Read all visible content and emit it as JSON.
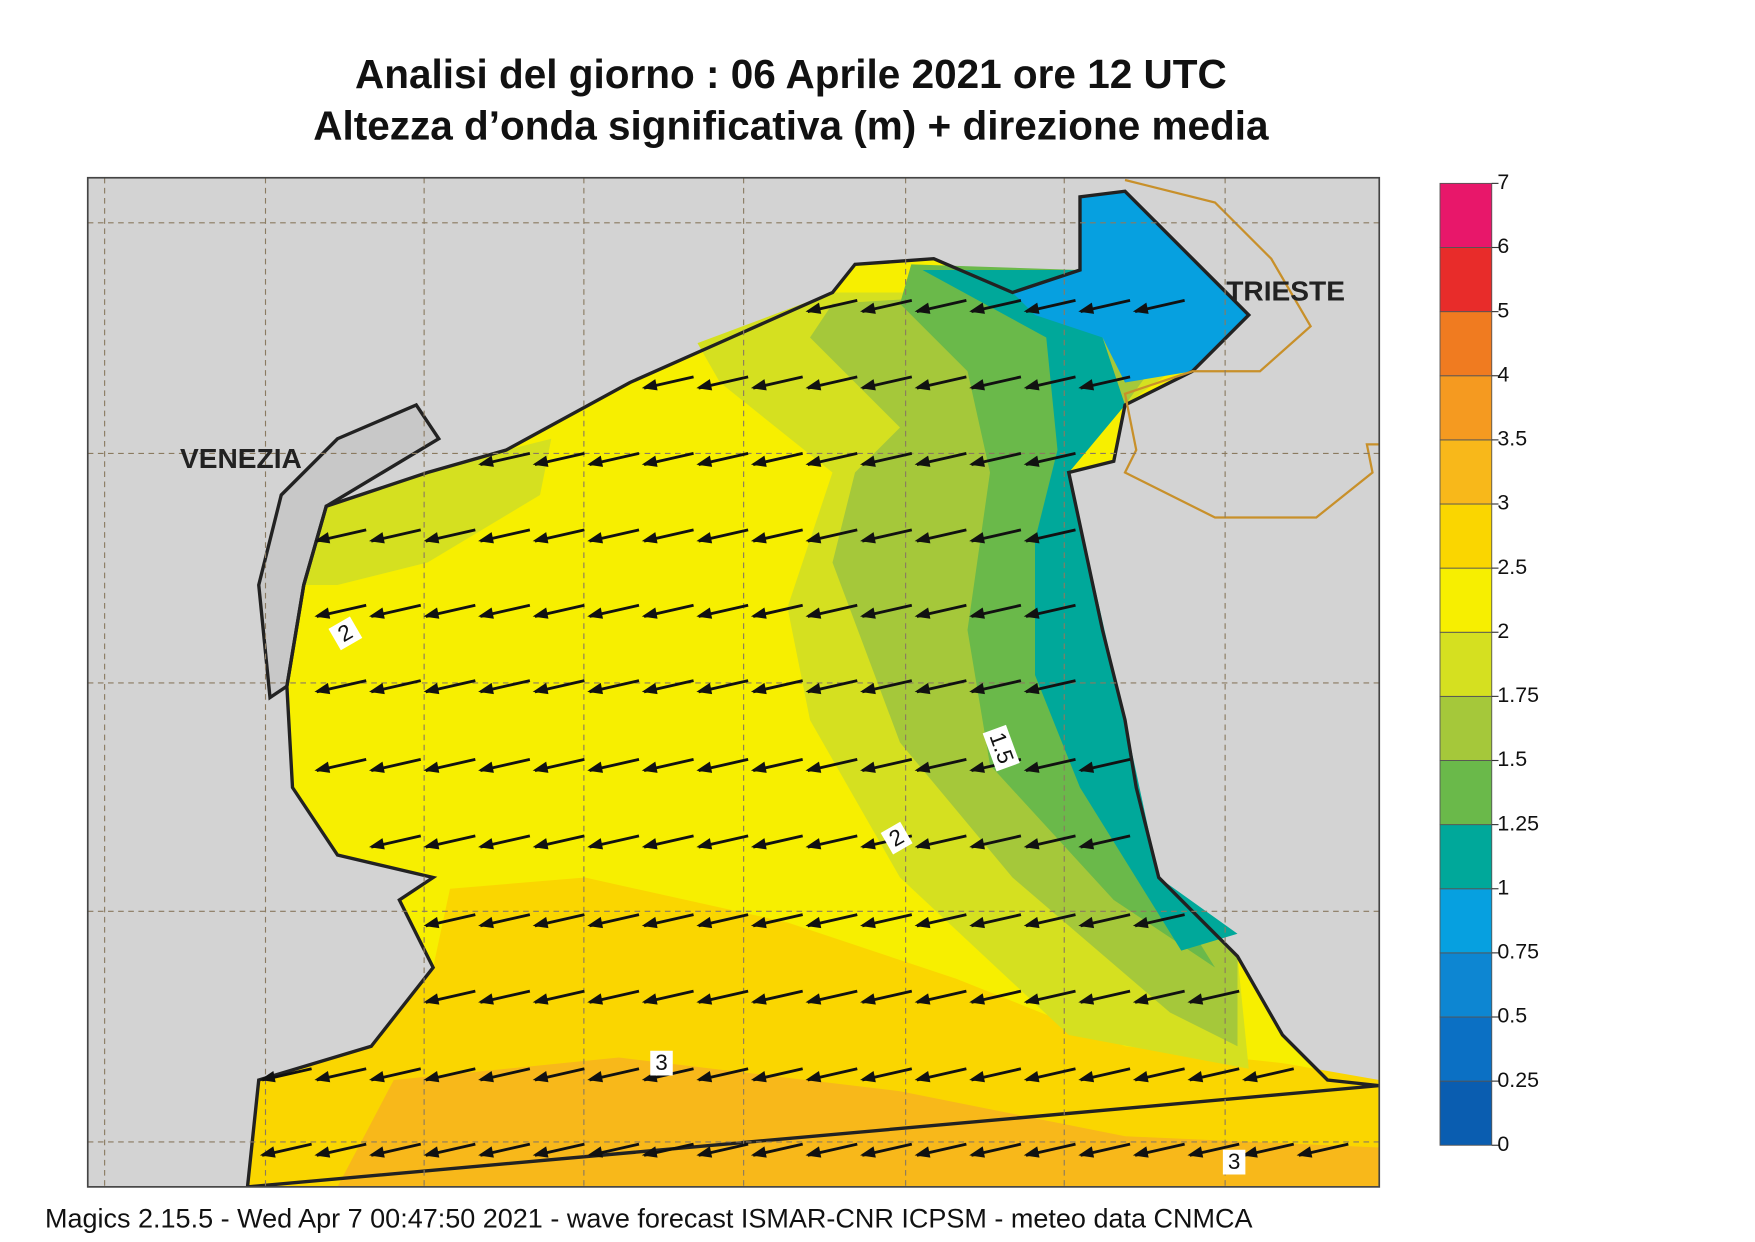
{
  "header": {
    "title_line1": "Analisi del giorno :  06   Aprile  2021   ore 12 UTC",
    "title_line2": "Altezza d’onda significativa (m) + direzione media"
  },
  "cities": [
    "VENEZIA",
    "TRIESTE"
  ],
  "contour_labels": [
    "2",
    "1.5",
    "2",
    "3",
    "3"
  ],
  "colorbar": {
    "levels": [
      0,
      0.25,
      0.5,
      0.75,
      1,
      1.25,
      1.5,
      1.75,
      2,
      2.5,
      3,
      3.5,
      4,
      5,
      6,
      7
    ],
    "colors": [
      "#0a5db0",
      "#0b70c4",
      "#0d86d2",
      "#06a0e0",
      "#00a89a",
      "#6ab94a",
      "#a5c83a",
      "#d5e020",
      "#f7ef00",
      "#fad600",
      "#f8b81a",
      "#f59a20",
      "#f07b20",
      "#e82c2a",
      "#e8176a"
    ]
  },
  "footer": "Magics 2.15.5 - Wed Apr  7 00:47:50 2021 - wave forecast  ISMAR-CNR  ICPSM - meteo data    CNMCA"
}
